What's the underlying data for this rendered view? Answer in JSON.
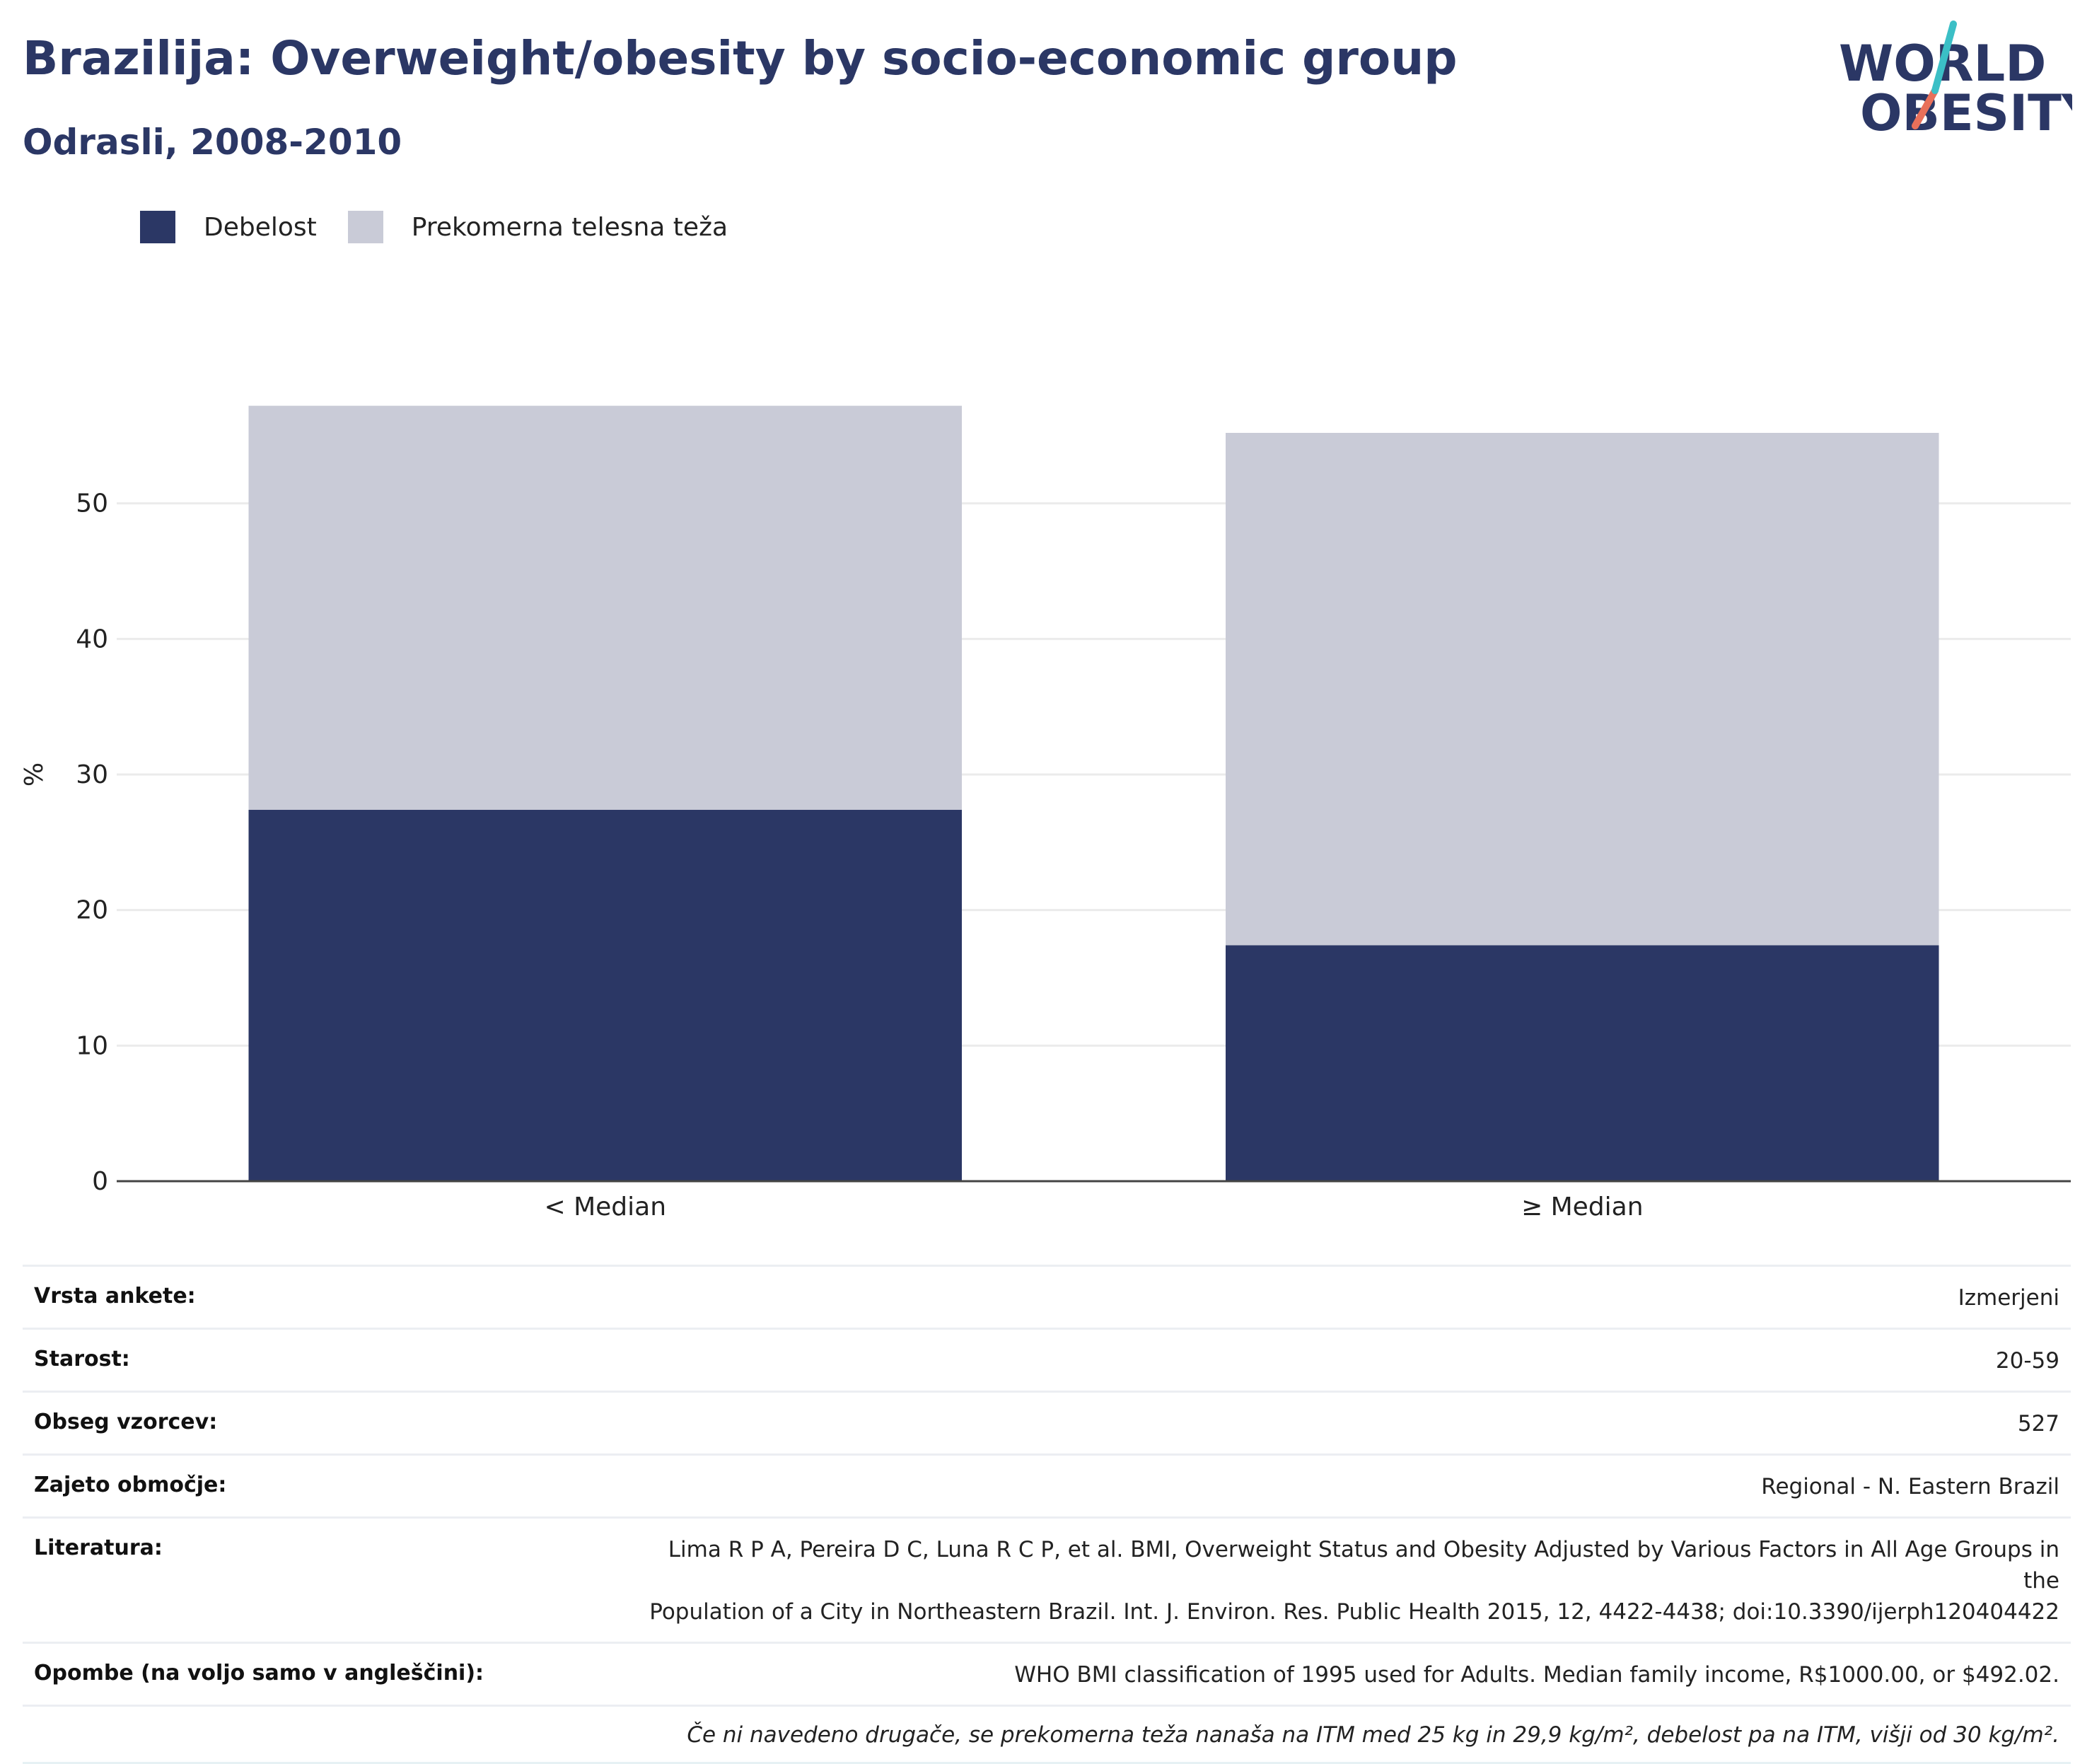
{
  "header": {
    "title": "Brazilija: Overweight/obesity by socio-economic group",
    "subtitle": "Odrasli, 2008-2010"
  },
  "logo": {
    "line1": "WORLD",
    "line2": "OBESITY",
    "colors": {
      "text": "#2b3765",
      "slash_top": "#3bbfc6",
      "slash_bottom": "#e8705a"
    }
  },
  "legend": [
    {
      "label": "Debelost",
      "color": "#2b3765"
    },
    {
      "label": "Prekomerna telesna teža",
      "color": "#c9cbd7"
    }
  ],
  "chart_data": {
    "type": "bar",
    "stacked": true,
    "categories": [
      "< Median",
      "≥ Median"
    ],
    "series": [
      {
        "name": "Debelost",
        "color": "#2b3765",
        "values": [
          27.4,
          17.4
        ]
      },
      {
        "name": "Prekomerna telesna teža",
        "color": "#c9cbd7",
        "values": [
          29.8,
          37.8
        ]
      }
    ],
    "ylabel": "%",
    "ylim": [
      0,
      60
    ],
    "yticks": [
      0,
      10,
      20,
      30,
      40,
      50
    ],
    "grid": true,
    "legend_position": "top-left"
  },
  "info": {
    "rows": [
      {
        "label": "Vrsta ankete:",
        "value": "Izmerjeni"
      },
      {
        "label": "Starost:",
        "value": "20-59"
      },
      {
        "label": "Obseg vzorcev:",
        "value": "527"
      },
      {
        "label": "Zajeto območje:",
        "value": "Regional - N. Eastern Brazil"
      },
      {
        "label": "Literatura:",
        "value_lines": [
          "Lima R P A, Pereira D C, Luna R C P, et al. BMI, Overweight Status and Obesity Adjusted by Various Factors in All Age Groups in the",
          "Population of a City in Northeastern Brazil. Int. J. Environ. Res. Public Health 2015, 12, 4422-4438; doi:10.3390/ijerph120404422"
        ]
      },
      {
        "label": "Opombe (na voljo samo v angleščini):",
        "value": "WHO BMI classification of 1995 used for Adults. Median family income, R$1000.00, or $492.02."
      }
    ],
    "footnote": "Če ni navedeno drugače, se prekomerna teža nanaša na ITM med 25 kg in 29,9 kg/m², debelost pa na ITM, višji od 30 kg/m²."
  }
}
